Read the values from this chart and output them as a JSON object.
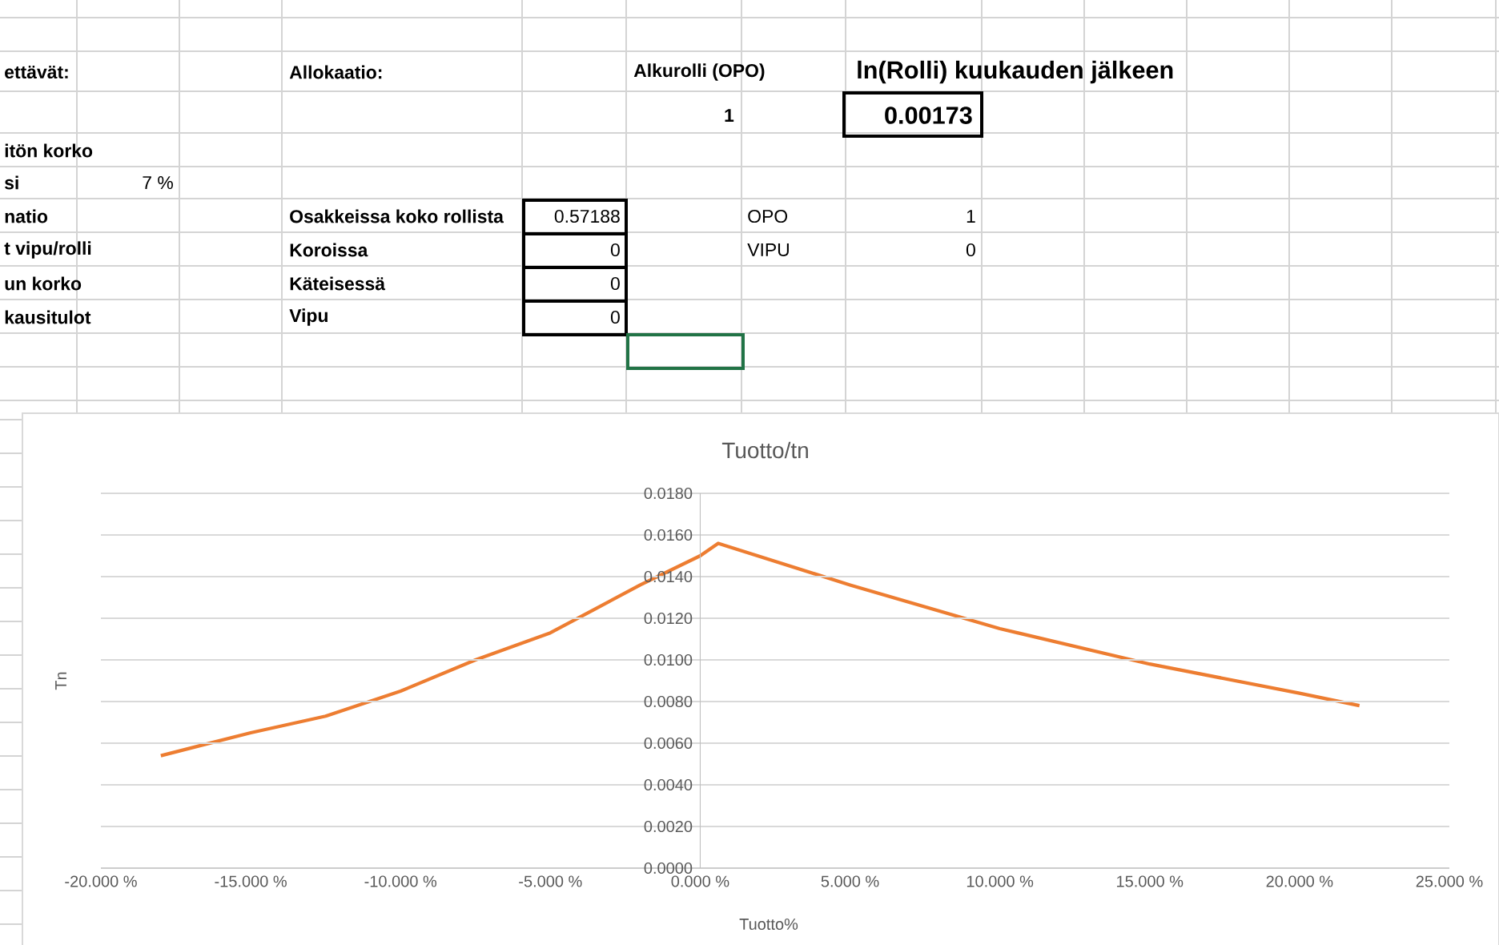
{
  "chart_data": {
    "type": "line",
    "title": "Tuotto/tn",
    "xlabel": "Tuotto%",
    "ylabel": "Tn",
    "x": [
      -18,
      -15,
      -12.5,
      -10,
      -7.5,
      -5,
      -2,
      0,
      0.6,
      5,
      10,
      15,
      20,
      22
    ],
    "series": [
      {
        "color": "#ed7d31",
        "values": [
          0.0054,
          0.0065,
          0.0073,
          0.0085,
          0.01,
          0.0113,
          0.0136,
          0.015,
          0.0156,
          0.0136,
          0.0115,
          0.0098,
          0.0084,
          0.0078
        ]
      }
    ],
    "xlim": [
      -20,
      25
    ],
    "xticks": [
      {
        "value": -20,
        "label": "-20.000 %"
      },
      {
        "value": -15,
        "label": "-15.000 %"
      },
      {
        "value": -10,
        "label": "-10.000 %"
      },
      {
        "value": -5,
        "label": "-5.000 %"
      },
      {
        "value": 0,
        "label": "0.000 %"
      },
      {
        "value": 5,
        "label": "5.000 %"
      },
      {
        "value": 10,
        "label": "10.000 %"
      },
      {
        "value": 15,
        "label": "15.000 %"
      },
      {
        "value": 20,
        "label": "20.000 %"
      },
      {
        "value": 25,
        "label": "25.000 %"
      }
    ],
    "ylim": [
      0,
      0.018
    ],
    "yticks": [
      {
        "value": 0,
        "label": "0.0000"
      },
      {
        "value": 0.002,
        "label": "0.0020"
      },
      {
        "value": 0.004,
        "label": "0.0040"
      },
      {
        "value": 0.006,
        "label": "0.0060"
      },
      {
        "value": 0.008,
        "label": "0.0080"
      },
      {
        "value": 0.01,
        "label": "0.0100"
      },
      {
        "value": 0.012,
        "label": "0.0120"
      },
      {
        "value": 0.014,
        "label": "0.0140"
      },
      {
        "value": 0.016,
        "label": "0.0160"
      },
      {
        "value": 0.018,
        "label": "0.0180"
      }
    ],
    "grid": "y",
    "annotations": [
      "ettävät:",
      "Allokaatio:",
      "Alkurolli (OPO)",
      "ln(Rolli) kuukauden jälkeen",
      "1",
      "0.00173",
      "itön korko",
      "si",
      "7 %",
      "natio",
      "Osakkeissa koko rollista",
      "0.57188",
      "OPO",
      "1",
      "t vipu/rolli",
      "Koroissa",
      "0",
      "VIPU",
      "0",
      "un korko",
      "Käteisessä",
      "0",
      "kausitulot",
      "Vipu",
      "0"
    ]
  }
}
